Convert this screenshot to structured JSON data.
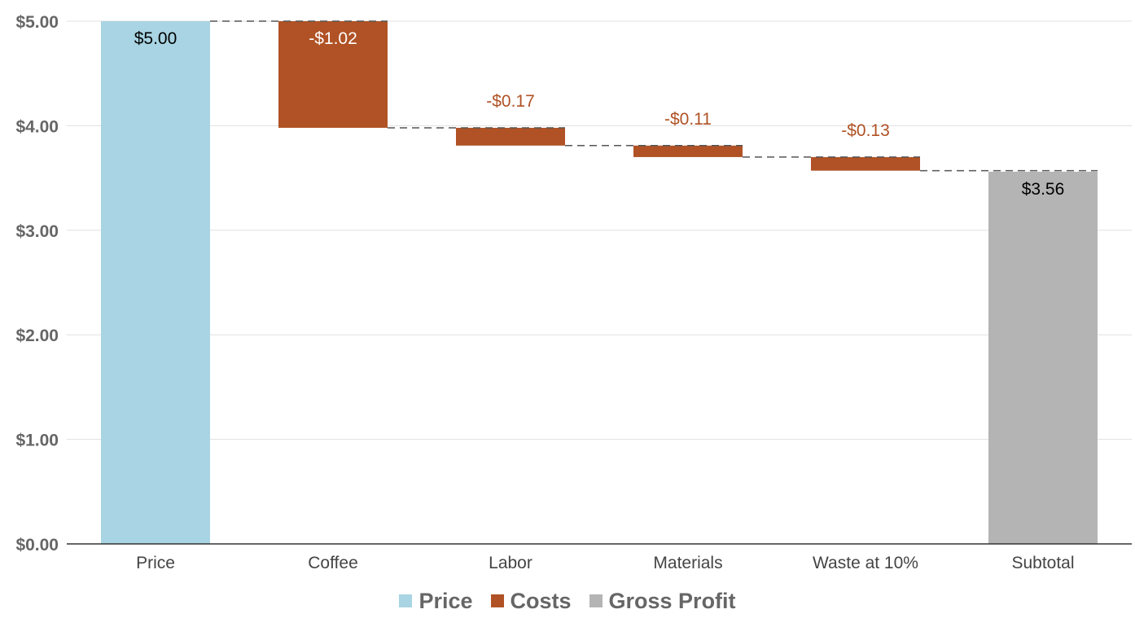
{
  "chart_data": {
    "type": "waterfall",
    "categories": [
      "Price",
      "Coffee",
      "Labor",
      "Materials",
      "Waste at 10%",
      "Subtotal"
    ],
    "values": [
      5.0,
      -1.02,
      -0.17,
      -0.11,
      -0.13,
      3.56
    ],
    "kinds": [
      "total",
      "delta",
      "delta",
      "delta",
      "delta",
      "total"
    ],
    "data_labels": [
      "$5.00",
      "-$1.02",
      "-$0.17",
      "-$0.11",
      "-$0.13",
      "$3.56"
    ],
    "title": "",
    "xlabel": "",
    "ylabel": "",
    "ylim": [
      0,
      5
    ],
    "yticks": [
      0,
      1,
      2,
      3,
      4,
      5
    ],
    "ytick_labels": [
      "$0.00",
      "$1.00",
      "$2.00",
      "$3.00",
      "$4.00",
      "$5.00"
    ],
    "grid": true,
    "connectors": "dashed",
    "legend_position": "bottom",
    "colors": {
      "Price": "#a8d4e3",
      "Costs": "#b05225",
      "Gross Profit": "#b4b4b4"
    }
  },
  "legend": [
    {
      "label": "Price",
      "color": "#a8d4e3"
    },
    {
      "label": "Costs",
      "color": "#b05225"
    },
    {
      "label": "Gross Profit",
      "color": "#b4b4b4"
    }
  ]
}
